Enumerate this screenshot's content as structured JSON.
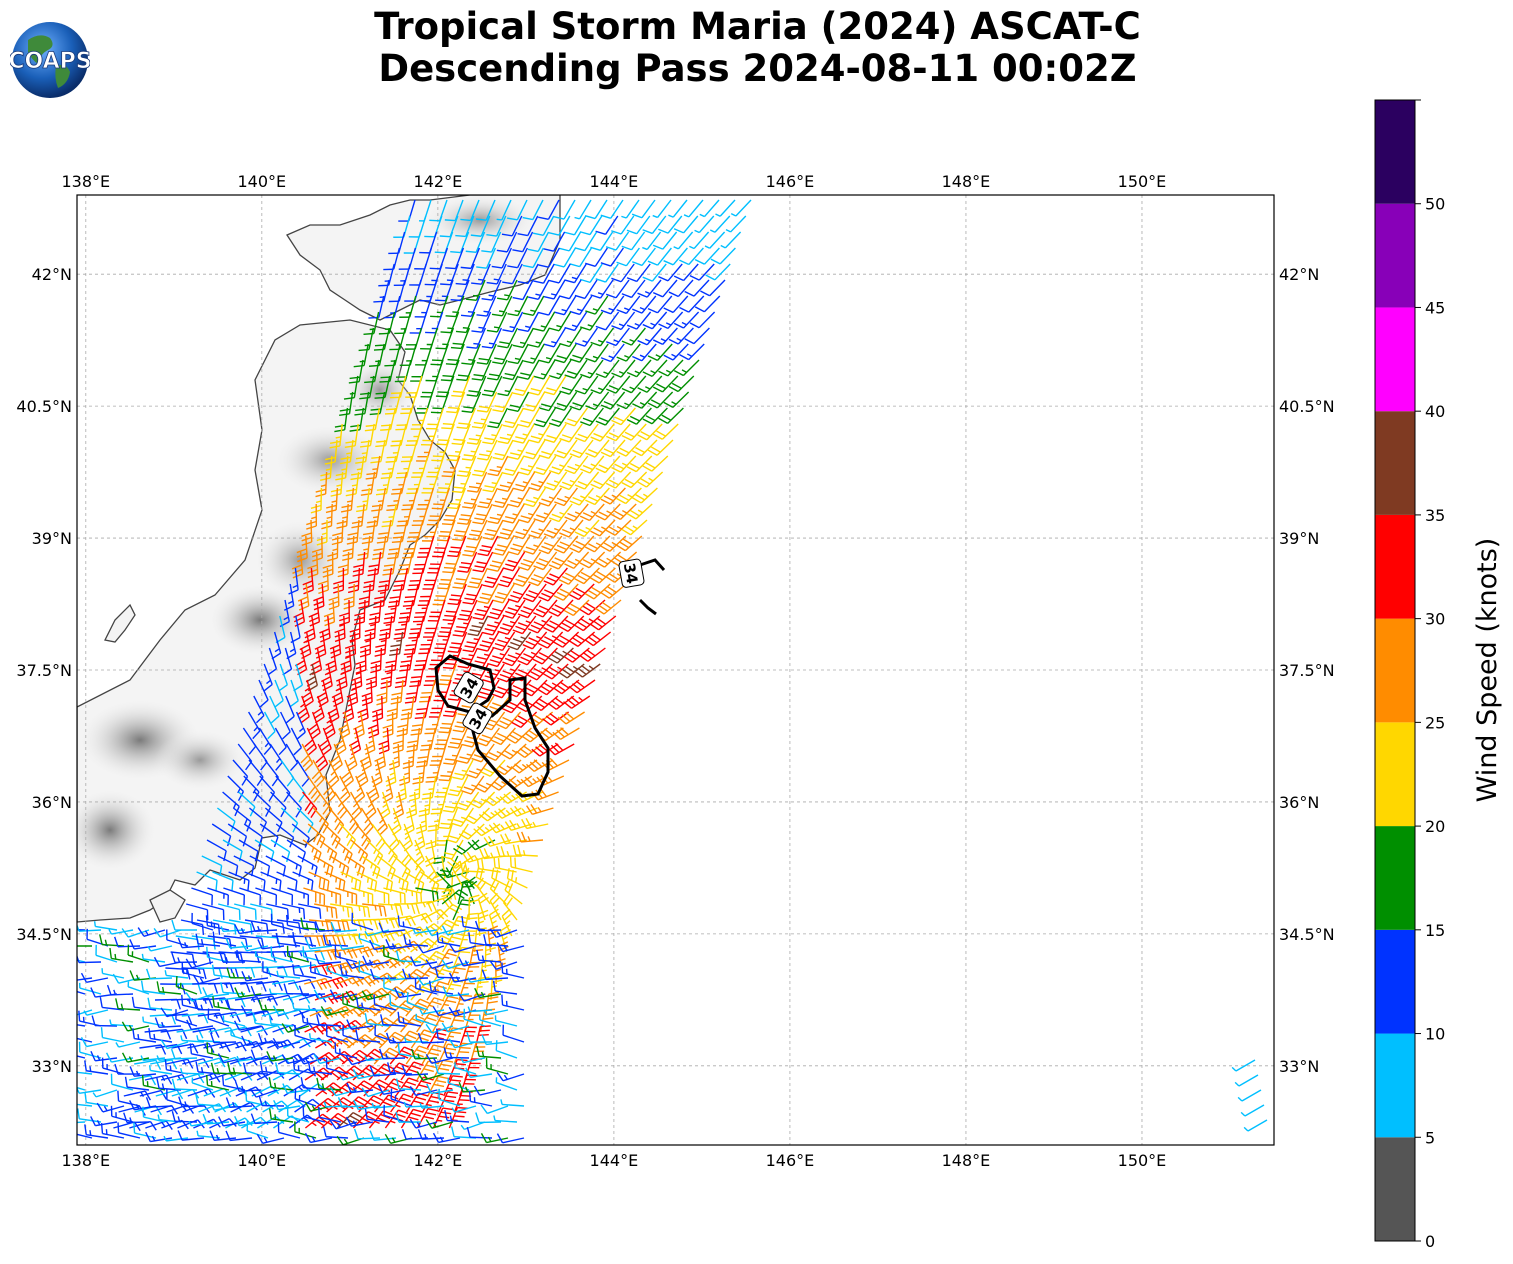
{
  "title": {
    "line1": "Tropical Storm Maria (2024) ASCAT-C",
    "line2": "Descending Pass 2024-08-11 00:02Z"
  },
  "logo": {
    "text": "COAPS"
  },
  "map": {
    "lon_range": [
      137.9,
      151.5
    ],
    "lat_range": [
      32.1,
      42.9
    ],
    "lon_ticks": [
      {
        "value": 138,
        "label": "138°E"
      },
      {
        "value": 140,
        "label": "140°E"
      },
      {
        "value": 142,
        "label": "142°E"
      },
      {
        "value": 144,
        "label": "144°E"
      },
      {
        "value": 146,
        "label": "146°E"
      },
      {
        "value": 148,
        "label": "148°E"
      },
      {
        "value": 150,
        "label": "150°E"
      }
    ],
    "lat_ticks": [
      {
        "value": 42,
        "label": "42°N"
      },
      {
        "value": 40.5,
        "label": "40.5°N"
      },
      {
        "value": 39,
        "label": "39°N"
      },
      {
        "value": 37.5,
        "label": "37.5°N"
      },
      {
        "value": 36,
        "label": "36°N"
      },
      {
        "value": 34.5,
        "label": "34.5°N"
      },
      {
        "value": 33,
        "label": "33°N"
      }
    ],
    "gridlines": true,
    "contour_label": "34",
    "contours": [
      {
        "label_lon": 142.35,
        "label_lat": 37.3
      },
      {
        "label_lon": 142.45,
        "label_lat": 36.95
      },
      {
        "label_lon": 144.2,
        "label_lat": 38.6
      }
    ],
    "storm_center": {
      "lon": 142.2,
      "lat": 35.1
    }
  },
  "colorbar": {
    "label": "Wind Speed (knots)",
    "ticks": [
      "0",
      "5",
      "10",
      "15",
      "20",
      "25",
      "30",
      "35",
      "40",
      "45",
      "50"
    ],
    "bins": [
      {
        "from": 0,
        "to": 5,
        "color": "#555555"
      },
      {
        "from": 5,
        "to": 10,
        "color": "#00bfff"
      },
      {
        "from": 10,
        "to": 15,
        "color": "#0033ff"
      },
      {
        "from": 15,
        "to": 20,
        "color": "#008f00"
      },
      {
        "from": 20,
        "to": 25,
        "color": "#ffd700"
      },
      {
        "from": 25,
        "to": 30,
        "color": "#ff8c00"
      },
      {
        "from": 30,
        "to": 35,
        "color": "#ff0000"
      },
      {
        "from": 35,
        "to": 40,
        "color": "#7f3a22"
      },
      {
        "from": 40,
        "to": 45,
        "color": "#ff00ff"
      },
      {
        "from": 45,
        "to": 50,
        "color": "#8800b8"
      },
      {
        "from": 50,
        "to": 55,
        "color": "#2b0060"
      }
    ]
  }
}
